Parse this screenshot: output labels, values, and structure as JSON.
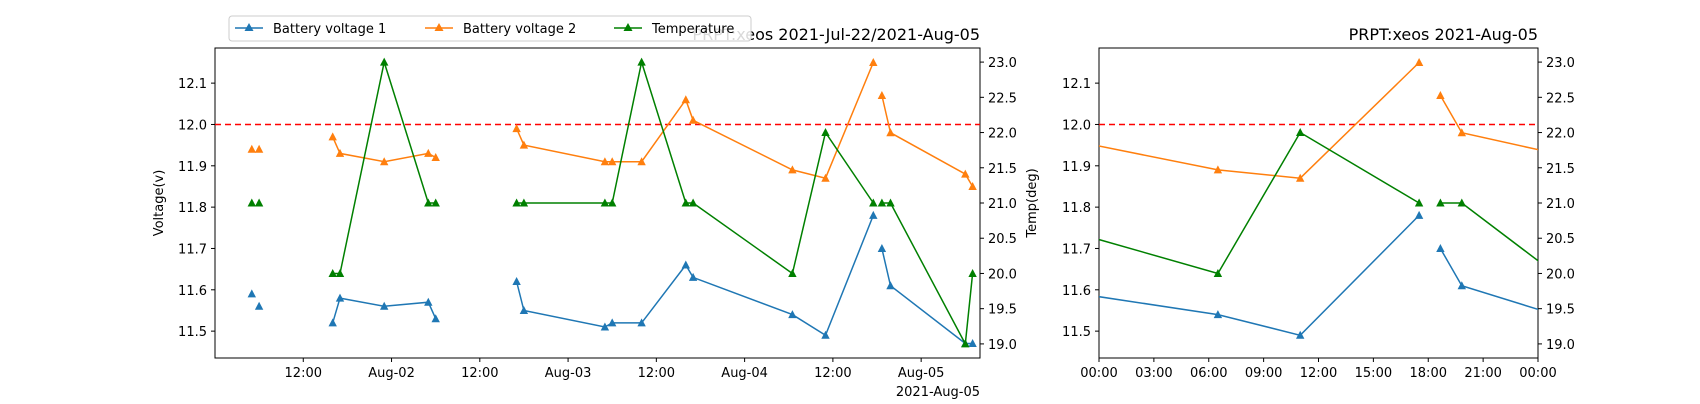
{
  "colors": {
    "series1": "#1f77b4",
    "series2": "#ff7f0e",
    "series3": "#008000",
    "threshold": "#ff0000"
  },
  "legend": {
    "placement": "top-left",
    "items": [
      "Battery voltage 1",
      "Battery voltage 2",
      "Temperature"
    ]
  },
  "chart_data": [
    {
      "type": "line",
      "title": "PRPT:xeos 2021-Jul-22/2021-Aug-05",
      "ylabel": "Voltage(v)",
      "y2label": "Temp(deg)",
      "offset_label": "2021-Aug-05",
      "xlim": [
        "2021-08-01 00:00",
        "2021-08-05 08:00"
      ],
      "ylim": [
        11.435,
        12.185
      ],
      "y2lim": [
        18.8,
        23.2
      ],
      "xticks": [
        "12:00",
        "Aug-02",
        "12:00",
        "Aug-03",
        "12:00",
        "Aug-04",
        "12:00",
        "Aug-05"
      ],
      "yticks": [
        "11.5",
        "11.6",
        "11.7",
        "11.8",
        "11.9",
        "12.0",
        "12.1"
      ],
      "y2ticks": [
        "19.0",
        "19.5",
        "20.0",
        "20.5",
        "21.0",
        "21.5",
        "22.0",
        "22.5",
        "23.0"
      ],
      "threshold": 12.0,
      "series": [
        {
          "name": "Battery voltage 1",
          "axis": "left",
          "segments": [
            [
              [
                "2021-08-01 05:00",
                11.59
              ]
            ],
            [
              [
                "2021-08-01 06:00",
                11.56
              ]
            ],
            [
              [
                "2021-08-01 16:00",
                11.52
              ],
              [
                "2021-08-01 17:00",
                11.58
              ],
              [
                "2021-08-01 23:00",
                11.56
              ],
              [
                "2021-08-02 05:00",
                11.57
              ],
              [
                "2021-08-02 06:00",
                11.53
              ]
            ],
            [
              [
                "2021-08-02 17:00",
                11.62
              ],
              [
                "2021-08-02 18:00",
                11.55
              ],
              [
                "2021-08-03 05:00",
                11.51
              ],
              [
                "2021-08-03 06:00",
                11.52
              ],
              [
                "2021-08-03 10:00",
                11.52
              ],
              [
                "2021-08-03 16:00",
                11.66
              ],
              [
                "2021-08-03 17:00",
                11.63
              ],
              [
                "2021-08-04 06:30",
                11.54
              ],
              [
                "2021-08-04 11:00",
                11.49
              ],
              [
                "2021-08-04 17:30",
                11.78
              ]
            ],
            [
              [
                "2021-08-04 18:40",
                11.7
              ],
              [
                "2021-08-04 19:50",
                11.61
              ],
              [
                "2021-08-05 06:00",
                11.47
              ],
              [
                "2021-08-05 07:00",
                11.47
              ]
            ]
          ]
        },
        {
          "name": "Battery voltage 2",
          "axis": "left",
          "segments": [
            [
              [
                "2021-08-01 05:00",
                11.94
              ]
            ],
            [
              [
                "2021-08-01 06:00",
                11.94
              ]
            ],
            [
              [
                "2021-08-01 16:00",
                11.97
              ],
              [
                "2021-08-01 17:00",
                11.93
              ],
              [
                "2021-08-01 23:00",
                11.91
              ],
              [
                "2021-08-02 05:00",
                11.93
              ],
              [
                "2021-08-02 06:00",
                11.92
              ]
            ],
            [
              [
                "2021-08-02 17:00",
                11.99
              ],
              [
                "2021-08-02 18:00",
                11.95
              ],
              [
                "2021-08-03 05:00",
                11.91
              ],
              [
                "2021-08-03 06:00",
                11.91
              ],
              [
                "2021-08-03 10:00",
                11.91
              ],
              [
                "2021-08-03 16:00",
                12.06
              ],
              [
                "2021-08-03 17:00",
                12.01
              ],
              [
                "2021-08-04 06:30",
                11.89
              ],
              [
                "2021-08-04 11:00",
                11.87
              ],
              [
                "2021-08-04 17:30",
                12.15
              ]
            ],
            [
              [
                "2021-08-04 18:40",
                12.07
              ],
              [
                "2021-08-04 19:50",
                11.98
              ],
              [
                "2021-08-05 06:00",
                11.88
              ],
              [
                "2021-08-05 07:00",
                11.85
              ]
            ]
          ]
        },
        {
          "name": "Temperature",
          "axis": "right",
          "segments": [
            [
              [
                "2021-08-01 05:00",
                21.0
              ]
            ],
            [
              [
                "2021-08-01 06:00",
                21.0
              ]
            ],
            [
              [
                "2021-08-01 16:00",
                20.0
              ],
              [
                "2021-08-01 17:00",
                20.0
              ],
              [
                "2021-08-01 23:00",
                23.0
              ],
              [
                "2021-08-02 05:00",
                21.0
              ],
              [
                "2021-08-02 06:00",
                21.0
              ]
            ],
            [
              [
                "2021-08-02 17:00",
                21.0
              ],
              [
                "2021-08-02 18:00",
                21.0
              ],
              [
                "2021-08-03 05:00",
                21.0
              ],
              [
                "2021-08-03 06:00",
                21.0
              ],
              [
                "2021-08-03 10:00",
                23.0
              ],
              [
                "2021-08-03 16:00",
                21.0
              ],
              [
                "2021-08-03 17:00",
                21.0
              ],
              [
                "2021-08-04 06:30",
                20.0
              ],
              [
                "2021-08-04 11:00",
                22.0
              ],
              [
                "2021-08-04 17:30",
                21.0
              ]
            ],
            [
              [
                "2021-08-04 18:40",
                21.0
              ],
              [
                "2021-08-04 19:50",
                21.0
              ],
              [
                "2021-08-05 06:00",
                19.0
              ],
              [
                "2021-08-05 07:00",
                20.0
              ]
            ]
          ]
        }
      ]
    },
    {
      "type": "line",
      "title": "PRPT:xeos 2021-Aug-05",
      "xlim": [
        "2021-08-04 00:00",
        "2021-08-05 00:00"
      ],
      "ylim": [
        11.435,
        12.185
      ],
      "y2lim": [
        18.8,
        23.2
      ],
      "xticks": [
        "00:00",
        "03:00",
        "06:00",
        "09:00",
        "12:00",
        "15:00",
        "18:00",
        "21:00",
        "00:00"
      ],
      "yticks": [
        "11.5",
        "11.6",
        "11.7",
        "11.8",
        "11.9",
        "12.0",
        "12.1"
      ],
      "y2ticks": [
        "19.0",
        "19.5",
        "20.0",
        "20.5",
        "21.0",
        "21.5",
        "22.0",
        "22.5",
        "23.0"
      ],
      "threshold": 12.0,
      "series": [
        {
          "name": "Battery voltage 1",
          "axis": "left",
          "segments": [
            [
              [
                "2021-08-03 17:00",
                11.63
              ],
              [
                "2021-08-04 06:30",
                11.54
              ],
              [
                "2021-08-04 11:00",
                11.49
              ],
              [
                "2021-08-04 17:30",
                11.78
              ]
            ],
            [
              [
                "2021-08-04 18:40",
                11.7
              ],
              [
                "2021-08-04 19:50",
                11.61
              ],
              [
                "2021-08-05 06:00",
                11.47
              ]
            ]
          ]
        },
        {
          "name": "Battery voltage 2",
          "axis": "left",
          "segments": [
            [
              [
                "2021-08-03 17:00",
                12.01
              ],
              [
                "2021-08-04 06:30",
                11.89
              ],
              [
                "2021-08-04 11:00",
                11.87
              ],
              [
                "2021-08-04 17:30",
                12.15
              ]
            ],
            [
              [
                "2021-08-04 18:40",
                12.07
              ],
              [
                "2021-08-04 19:50",
                11.98
              ],
              [
                "2021-08-05 06:00",
                11.88
              ]
            ]
          ]
        },
        {
          "name": "Temperature",
          "axis": "right",
          "segments": [
            [
              [
                "2021-08-03 17:00",
                21.0
              ],
              [
                "2021-08-04 06:30",
                20.0
              ],
              [
                "2021-08-04 11:00",
                22.0
              ],
              [
                "2021-08-04 17:30",
                21.0
              ]
            ],
            [
              [
                "2021-08-04 18:40",
                21.0
              ],
              [
                "2021-08-04 19:50",
                21.0
              ],
              [
                "2021-08-05 06:00",
                19.0
              ]
            ]
          ]
        }
      ]
    }
  ]
}
